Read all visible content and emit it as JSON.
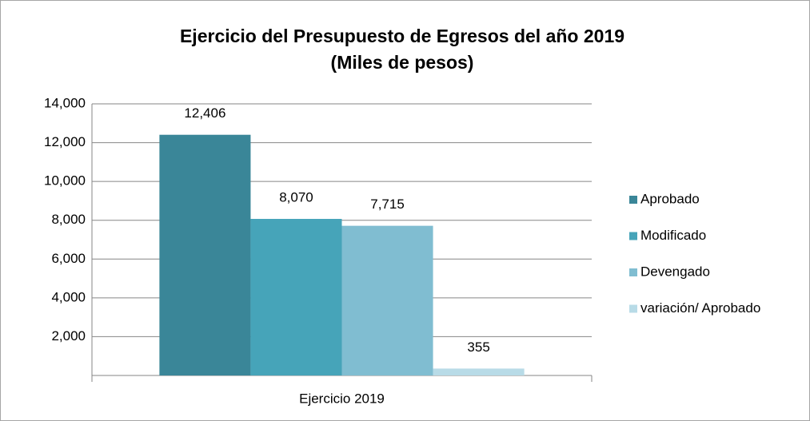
{
  "chart_data": {
    "type": "bar",
    "title": "Ejercicio del Presupuesto de Egresos del año 2019",
    "subtitle": "(Miles de pesos)",
    "categories": [
      "Ejercicio 2019"
    ],
    "series": [
      {
        "name": "Aprobado",
        "color": "#3a8698",
        "values": [
          12406
        ],
        "value_labels": [
          "12,406"
        ]
      },
      {
        "name": "Modificado",
        "color": "#46a4b9",
        "values": [
          8070
        ],
        "value_labels": [
          "8,070"
        ]
      },
      {
        "name": "Devengado",
        "color": "#80bdd1",
        "values": [
          7715
        ],
        "value_labels": [
          "7,715"
        ]
      },
      {
        "name": "variación/ Aprobado",
        "color": "#b8dbe7",
        "values": [
          355
        ],
        "value_labels": [
          "355"
        ]
      }
    ],
    "ylim": [
      0,
      14000
    ],
    "yticks": [
      {
        "value": 2000,
        "label": "2,000"
      },
      {
        "value": 4000,
        "label": "4,000"
      },
      {
        "value": 6000,
        "label": "6,000"
      },
      {
        "value": 8000,
        "label": "8,000"
      },
      {
        "value": 10000,
        "label": "10,000"
      },
      {
        "value": 12000,
        "label": "12,000"
      },
      {
        "value": 14000,
        "label": "14,000"
      }
    ],
    "grid": true,
    "legend": "right"
  }
}
